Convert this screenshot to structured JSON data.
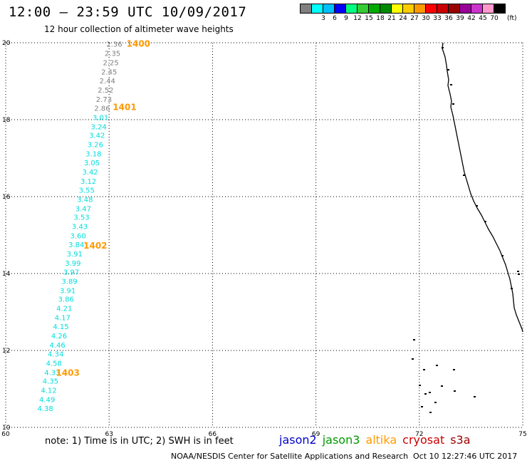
{
  "header": {
    "title": "12:00 – 23:59 UTC 10/09/2017",
    "subtitle": "12 hour collection of altimeter wave heights"
  },
  "legend": {
    "unit": "(ft)",
    "swatches": [
      {
        "label": "",
        "color": "#808080"
      },
      {
        "label": "3",
        "color": "#00ffff"
      },
      {
        "label": "6",
        "color": "#00bfff"
      },
      {
        "label": "9",
        "color": "#0000ff"
      },
      {
        "label": "12",
        "color": "#00ff7f"
      },
      {
        "label": "15",
        "color": "#33cc33"
      },
      {
        "label": "18",
        "color": "#00aa00"
      },
      {
        "label": "21",
        "color": "#008800"
      },
      {
        "label": "24",
        "color": "#ffff00"
      },
      {
        "label": "27",
        "color": "#ffcc00"
      },
      {
        "label": "30",
        "color": "#ff9900"
      },
      {
        "label": "33",
        "color": "#ff0000"
      },
      {
        "label": "36",
        "color": "#cc0000"
      },
      {
        "label": "39",
        "color": "#990000"
      },
      {
        "label": "42",
        "color": "#990099"
      },
      {
        "label": "45",
        "color": "#cc33cc"
      },
      {
        "label": "70",
        "color": "#ff99cc"
      },
      {
        "label": "",
        "color": "#000000"
      }
    ]
  },
  "map": {
    "lon_range": [
      60,
      75
    ],
    "lat_range": [
      10,
      20
    ],
    "x_ticks": [
      "60",
      "63",
      "66",
      "69",
      "72",
      "75"
    ],
    "y_ticks": [
      "10",
      "12",
      "14",
      "16",
      "18",
      "20"
    ],
    "gridlines": true,
    "coastline_color": "#000000"
  },
  "chart_data": {
    "type": "scatter",
    "x_axis": "longitude",
    "y_axis": "latitude",
    "xlim": [
      60,
      75
    ],
    "ylim": [
      10,
      20
    ],
    "x_ticks": [
      60,
      63,
      66,
      69,
      72,
      75
    ],
    "y_ticks": [
      10,
      12,
      14,
      16,
      18,
      20
    ],
    "series": [
      {
        "color": "#808080",
        "points": [
          {
            "lon": 63.15,
            "lat": 19.95,
            "swh": "2.36"
          },
          {
            "lon": 63.1,
            "lat": 19.71,
            "swh": "2.35"
          },
          {
            "lon": 63.05,
            "lat": 19.47,
            "swh": "2.25"
          },
          {
            "lon": 63.0,
            "lat": 19.23,
            "swh": "2.45"
          },
          {
            "lon": 62.95,
            "lat": 19.0,
            "swh": "2.44"
          },
          {
            "lon": 62.9,
            "lat": 18.76,
            "swh": "2.52"
          },
          {
            "lon": 62.85,
            "lat": 18.52,
            "swh": "2.73"
          },
          {
            "lon": 62.8,
            "lat": 18.29,
            "swh": "2.86"
          }
        ]
      },
      {
        "color": "#00dddd",
        "points": [
          {
            "lon": 62.75,
            "lat": 18.05,
            "swh": "3.01"
          },
          {
            "lon": 62.7,
            "lat": 17.81,
            "swh": "3.24"
          },
          {
            "lon": 62.65,
            "lat": 17.58,
            "swh": "3.42"
          },
          {
            "lon": 62.6,
            "lat": 17.34,
            "swh": "3.26"
          },
          {
            "lon": 62.55,
            "lat": 17.1,
            "swh": "3.18"
          },
          {
            "lon": 62.5,
            "lat": 16.87,
            "swh": "3.05"
          },
          {
            "lon": 62.45,
            "lat": 16.63,
            "swh": "3.42"
          },
          {
            "lon": 62.4,
            "lat": 16.39,
            "swh": "3.12"
          },
          {
            "lon": 62.35,
            "lat": 16.16,
            "swh": "3.55"
          },
          {
            "lon": 62.3,
            "lat": 15.92,
            "swh": "3.48"
          },
          {
            "lon": 62.25,
            "lat": 15.68,
            "swh": "3.47"
          },
          {
            "lon": 62.2,
            "lat": 15.45,
            "swh": "3.53"
          },
          {
            "lon": 62.15,
            "lat": 15.21,
            "swh": "3.43"
          },
          {
            "lon": 62.1,
            "lat": 14.97,
            "swh": "3.60"
          },
          {
            "lon": 62.05,
            "lat": 14.74,
            "swh": "3.84"
          },
          {
            "lon": 62.0,
            "lat": 14.5,
            "swh": "3.91"
          },
          {
            "lon": 61.95,
            "lat": 14.26,
            "swh": "3.99"
          },
          {
            "lon": 61.9,
            "lat": 14.03,
            "swh": "3.97"
          },
          {
            "lon": 61.85,
            "lat": 13.79,
            "swh": "3.89"
          },
          {
            "lon": 61.8,
            "lat": 13.55,
            "swh": "3.91"
          },
          {
            "lon": 61.75,
            "lat": 13.32,
            "swh": "3.86"
          },
          {
            "lon": 61.7,
            "lat": 13.08,
            "swh": "4.21"
          },
          {
            "lon": 61.65,
            "lat": 12.84,
            "swh": "4.17"
          },
          {
            "lon": 61.6,
            "lat": 12.61,
            "swh": "4.15"
          },
          {
            "lon": 61.55,
            "lat": 12.37,
            "swh": "4.26"
          },
          {
            "lon": 61.5,
            "lat": 12.13,
            "swh": "4.46"
          },
          {
            "lon": 61.45,
            "lat": 11.9,
            "swh": "4.34"
          },
          {
            "lon": 61.4,
            "lat": 11.66,
            "swh": "4.58"
          },
          {
            "lon": 61.35,
            "lat": 11.42,
            "swh": "4.33"
          },
          {
            "lon": 61.3,
            "lat": 11.19,
            "swh": "4.35"
          },
          {
            "lon": 61.25,
            "lat": 10.95,
            "swh": "4.12"
          },
          {
            "lon": 61.2,
            "lat": 10.71,
            "swh": "4.49"
          },
          {
            "lon": 61.15,
            "lat": 10.48,
            "swh": "4.38"
          }
        ]
      }
    ],
    "time_labels": [
      {
        "text": "1400",
        "lon": 63.85,
        "lat": 19.97
      },
      {
        "text": "1401",
        "lon": 63.45,
        "lat": 18.32
      },
      {
        "text": "1402",
        "lon": 62.6,
        "lat": 14.72
      },
      {
        "text": "1403",
        "lon": 61.8,
        "lat": 11.42
      }
    ],
    "time_label_color": "#ff9900"
  },
  "footer": {
    "note": "note:  1) Time is in UTC;  2) SWH is in feet",
    "satellites": [
      {
        "name": "jason2",
        "color": "#0000cc"
      },
      {
        "name": "jason3",
        "color": "#009900"
      },
      {
        "name": "altika",
        "color": "#ff9900"
      },
      {
        "name": "cryosat",
        "color": "#cc0000"
      },
      {
        "name": "s3a",
        "color": "#990000"
      }
    ],
    "credit": "NOAA/NESDIS Center for Satellite Applications and Research",
    "timestamp": "Oct 10 12:27:46 UTC 2017"
  }
}
